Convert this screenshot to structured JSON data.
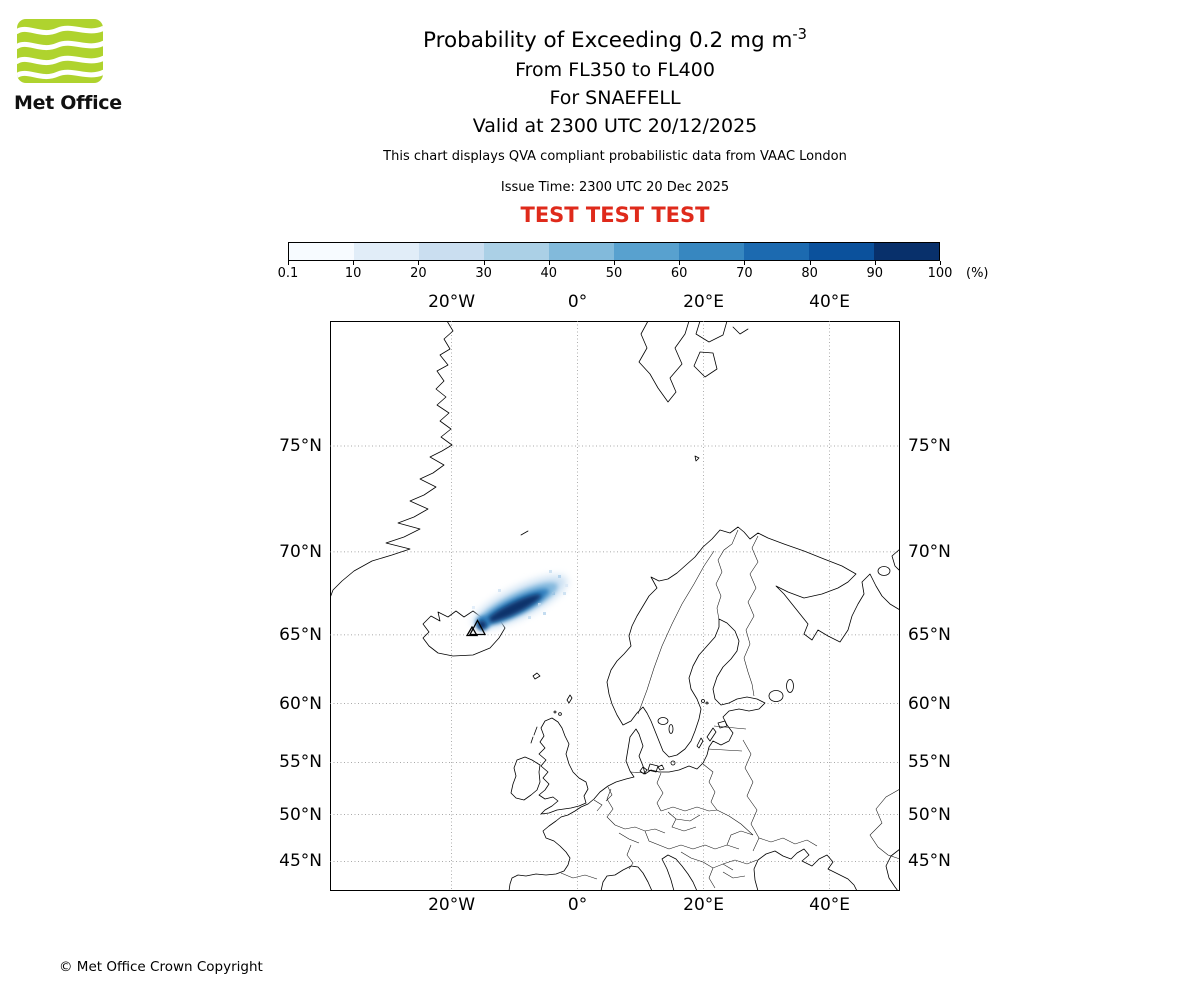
{
  "logo": {
    "text": "Met Office",
    "brand_green": "#afd32e"
  },
  "header": {
    "title_main": "Probability of Exceeding 0.2 mg m",
    "title_exp": "-3",
    "line_fl": "From FL350 to FL400",
    "line_for": "For SNAEFELL",
    "line_valid": "Valid at 2300 UTC 20/12/2025",
    "note": "This chart displays QVA compliant probabilistic data from VAAC London",
    "issue": "Issue Time: 2300 UTC 20 Dec 2025",
    "test": "TEST TEST TEST",
    "test_color": "#df2a1b"
  },
  "colorbar": {
    "tick_labels": [
      "0.1",
      "10",
      "20",
      "30",
      "40",
      "50",
      "60",
      "70",
      "80",
      "90",
      "100"
    ],
    "unit_label": "(%)",
    "colors": [
      "#f7fbff",
      "#e1edf8",
      "#cadef0",
      "#abd0e6",
      "#82badb",
      "#58a1cf",
      "#3787c0",
      "#1c6ab0",
      "#0b519c",
      "#08306b"
    ]
  },
  "map_labels": {
    "lon": [
      "20°W",
      "0°",
      "20°E",
      "40°E"
    ],
    "lat": [
      "75°N",
      "70°N",
      "65°N",
      "60°N",
      "55°N",
      "50°N",
      "45°N"
    ]
  },
  "chart_data": {
    "type": "heatmap",
    "title": "Probability of Exceeding 0.2 mg m-3",
    "flight_levels": "FL350 to FL400",
    "volcano_name": "SNAEFELL",
    "valid_time": "2300 UTC 20/12/2025",
    "issue_time": "2300 UTC 20 Dec 2025",
    "source": "VAAC London",
    "units": "%",
    "threshold": "0.2 mg m-3",
    "colorbar_bounds_pct": [
      0.1,
      10,
      20,
      30,
      40,
      50,
      60,
      70,
      80,
      90,
      100
    ],
    "projection": "mercator",
    "map_extent": {
      "lon_min": -39.3,
      "lon_max": 51.1,
      "lat_min": 41.5,
      "lat_max": 79.4
    },
    "lon_gridlines_deg": [
      -20,
      0,
      20,
      40
    ],
    "lat_gridlines_deg": [
      75,
      70,
      65,
      60,
      55,
      50,
      45
    ],
    "volcano_marker": {
      "lon": -15.6,
      "lat": 64.9,
      "symbol": "triangle"
    },
    "plume": {
      "description": "High-probability volcanic ash plume extending northeast from Snaefell, Iceland over the Norwegian Sea",
      "core_track_ge90pct": [
        {
          "lon": -15.4,
          "lat": 65.1
        },
        {
          "lon": -13.0,
          "lat": 66.2
        },
        {
          "lon": -10.2,
          "lat": 67.2
        },
        {
          "lon": -7.6,
          "lat": 67.9
        }
      ],
      "outer_extent_low_pct": {
        "lon_min": -17.6,
        "lon_max": -2.6,
        "lat_min": 64.6,
        "lat_max": 69.2
      }
    }
  },
  "footer": {
    "copyright": "© Met Office Crown Copyright"
  }
}
